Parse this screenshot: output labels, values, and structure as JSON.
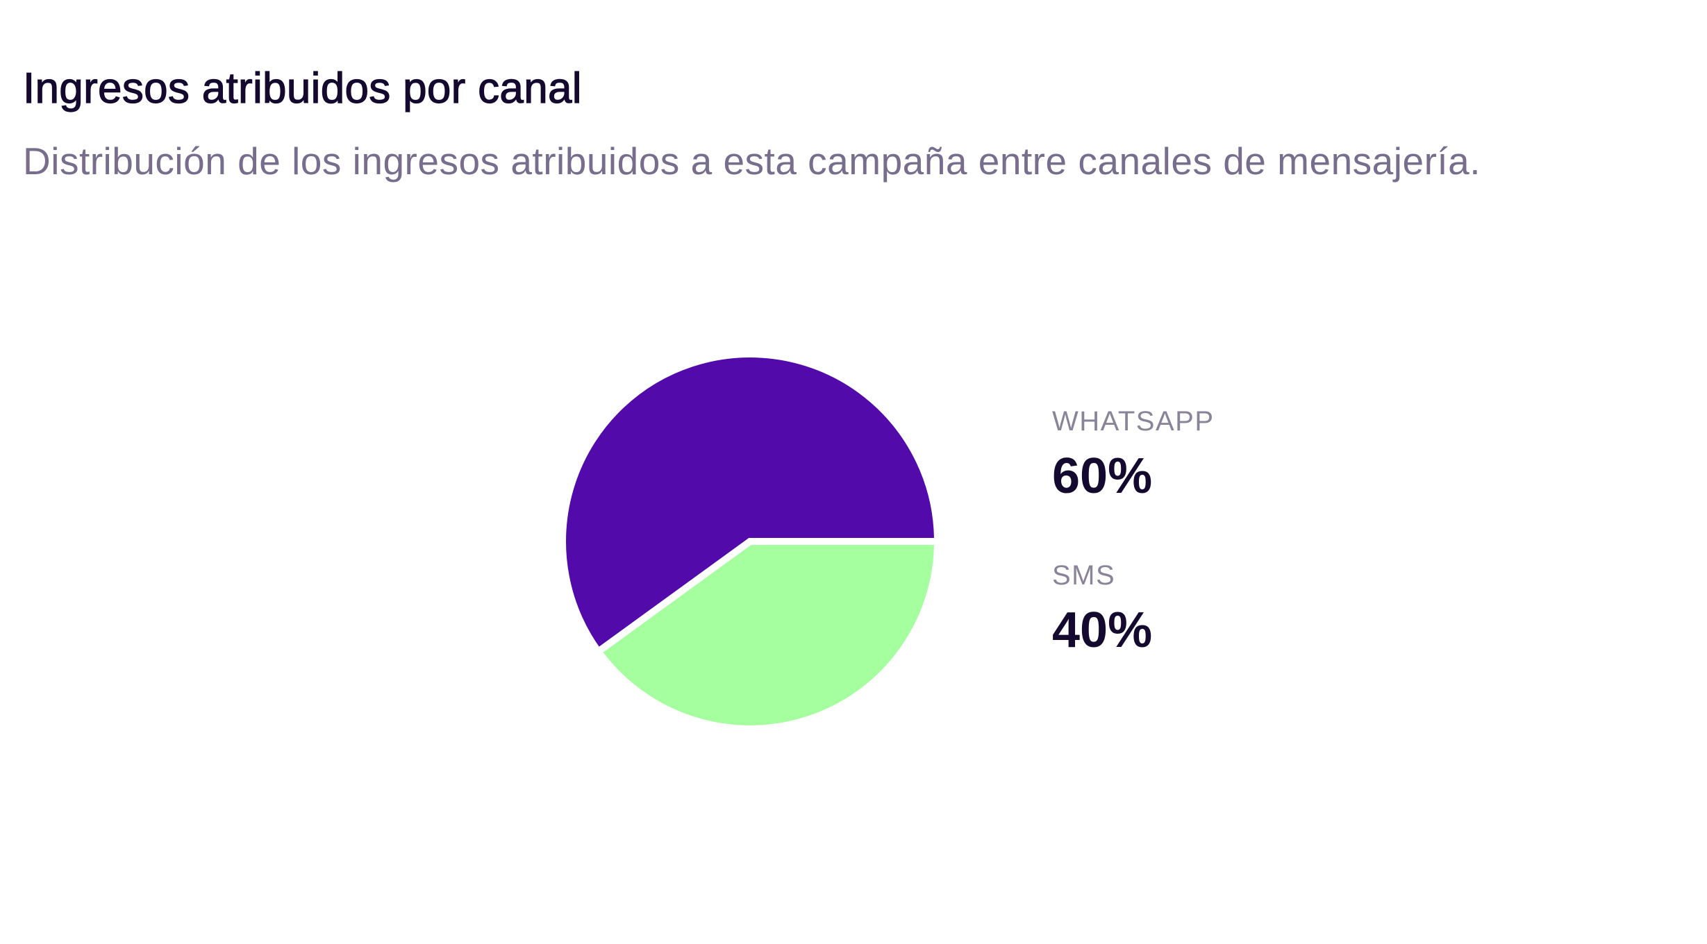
{
  "header": {
    "title": "Ingresos atribuidos por canal",
    "subtitle": "Distribución de los ingresos atribuidos a esta campaña entre canales de mensajería."
  },
  "colors": {
    "whatsapp": "#520aab",
    "sms": "#a6ff9e",
    "separator": "#ffffff"
  },
  "chart_data": {
    "type": "pie",
    "title": "Ingresos atribuidos por canal",
    "categories": [
      "WHATSAPP",
      "SMS"
    ],
    "values": [
      60,
      40
    ],
    "unit": "%",
    "legend": "right",
    "labels": [
      "60%",
      "40%"
    ]
  }
}
